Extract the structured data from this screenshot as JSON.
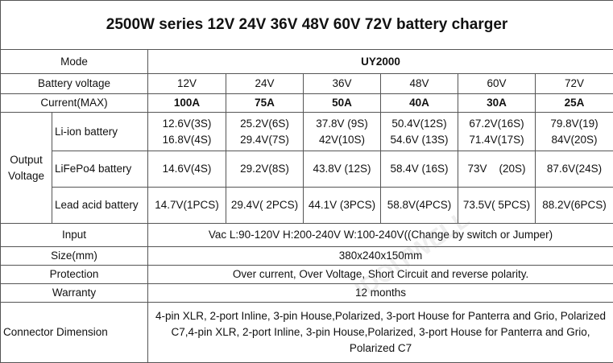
{
  "title": "2500W series 12V 24V 36V 48V 60V 72V battery charger",
  "watermark": "IDOITWELL",
  "mode": {
    "label": "Mode",
    "value": "UY2000"
  },
  "battery_voltage": {
    "label": "Battery voltage",
    "values": [
      "12V",
      "24V",
      "36V",
      "48V",
      "60V",
      "72V"
    ]
  },
  "current": {
    "label": "Current(MAX)",
    "values": [
      "100A",
      "75A",
      "50A",
      "40A",
      "30A",
      "25A"
    ]
  },
  "output": {
    "label": "Output Voltage",
    "rows": [
      {
        "label": "Li-ion battery",
        "values": [
          [
            "12.6V(3S)",
            "16.8V(4S)"
          ],
          [
            "25.2V(6S)",
            "29.4V(7S)"
          ],
          [
            "37.8V (9S)",
            "42V(10S)"
          ],
          [
            "50.4V(12S)",
            "54.6V (13S)"
          ],
          [
            "67.2V(16S)",
            "71.4V(17S)"
          ],
          [
            "79.8V(19)",
            "84V(20S)"
          ]
        ]
      },
      {
        "label": "LiFePo4 battery",
        "values": [
          [
            "14.6V(4S)"
          ],
          [
            "29.2V(8S)"
          ],
          [
            "43.8V (12S)"
          ],
          [
            "58.4V (16S)"
          ],
          [
            "73V    (20S)"
          ],
          [
            "87.6V(24S)"
          ]
        ]
      },
      {
        "label": "Lead acid battery",
        "values": [
          [
            "14.7V(1PCS)"
          ],
          [
            "29.4V( 2PCS)"
          ],
          [
            "44.1V (3PCS)"
          ],
          [
            "58.8V(4PCS)"
          ],
          [
            "73.5V( 5PCS)"
          ],
          [
            "88.2V(6PCS)"
          ]
        ]
      }
    ]
  },
  "specs": [
    {
      "label": "Input",
      "value": "Vac L:90-120V    H:200-240V    W:100-240V((Change by switch or Jumper)"
    },
    {
      "label": "Size(mm)",
      "value": "380x240x150mm"
    },
    {
      "label": "Protection",
      "value": "Over current, Over Voltage, Short Circuit and reverse polarity."
    },
    {
      "label": "Warranty",
      "value": "12 months"
    },
    {
      "label": "Connector Dimension",
      "value": "4-pin XLR, 2-port Inline, 3-pin House,Polarized, 3-port House for Panterra and Grio, Polarized C7,4-pin XLR, 2-port Inline, 3-pin House,Polarized, 3-port House for Panterra and Grio, Polarized C7"
    }
  ]
}
